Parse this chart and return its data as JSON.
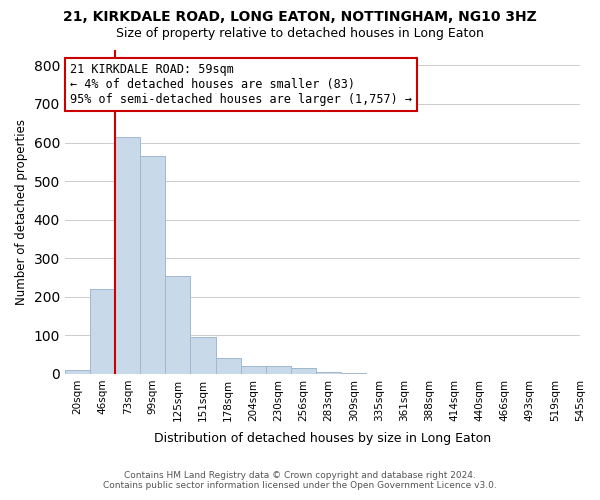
{
  "title": "21, KIRKDALE ROAD, LONG EATON, NOTTINGHAM, NG10 3HZ",
  "subtitle": "Size of property relative to detached houses in Long Eaton",
  "xlabel": "Distribution of detached houses by size in Long Eaton",
  "ylabel": "Number of detached properties",
  "footer_line1": "Contains HM Land Registry data © Crown copyright and database right 2024.",
  "footer_line2": "Contains public sector information licensed under the Open Government Licence v3.0.",
  "bin_labels": [
    "20sqm",
    "46sqm",
    "73sqm",
    "99sqm",
    "125sqm",
    "151sqm",
    "178sqm",
    "204sqm",
    "230sqm",
    "256sqm",
    "283sqm",
    "309sqm",
    "335sqm",
    "361sqm",
    "388sqm",
    "414sqm",
    "440sqm",
    "466sqm",
    "493sqm",
    "519sqm",
    "545sqm"
  ],
  "bar_values": [
    10,
    220,
    615,
    565,
    255,
    95,
    40,
    20,
    20,
    15,
    5,
    3,
    0,
    0,
    0,
    0,
    0,
    0,
    0,
    0
  ],
  "bar_color": "#c8d9ea",
  "bar_edge_color": "#a0b8d0",
  "vline_x": 1,
  "vline_color": "#cc0000",
  "annotation_text": "21 KIRKDALE ROAD: 59sqm\n← 4% of detached houses are smaller (83)\n95% of semi-detached houses are larger (1,757) →",
  "annotation_box_color": "#ffffff",
  "annotation_box_edge": "#cc0000",
  "ylim": [
    0,
    840
  ],
  "yticks": [
    0,
    100,
    200,
    300,
    400,
    500,
    600,
    700,
    800
  ],
  "bg_color": "#ffffff",
  "grid_color": "#cccccc"
}
